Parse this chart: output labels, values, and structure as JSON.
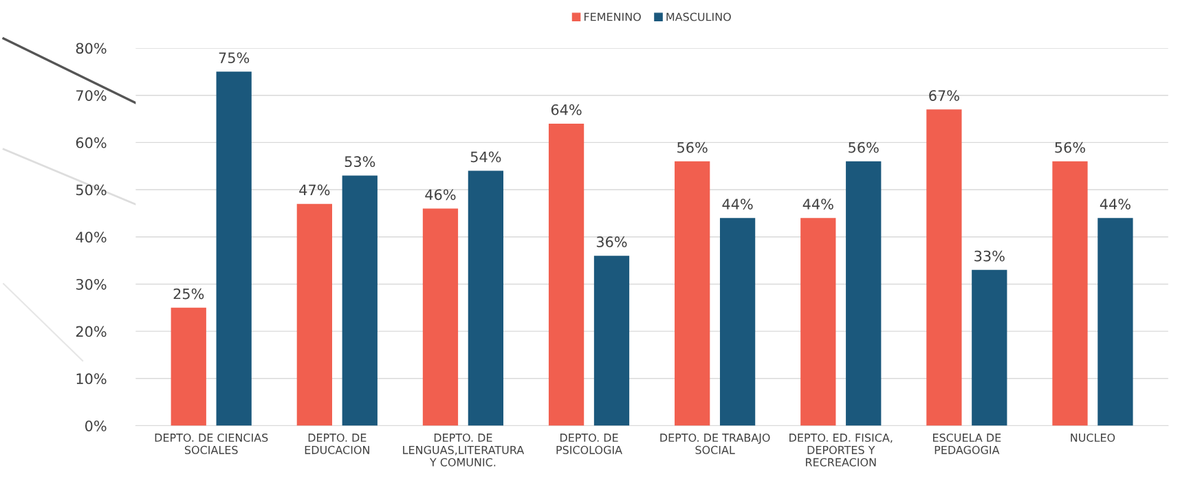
{
  "chart_data": {
    "type": "bar",
    "categories": [
      "DEPTO. DE CIENCIAS\nSOCIALES",
      "DEPTO. DE\nEDUCACION",
      "DEPTO. DE\nLENGUAS,LITERATURA\nY COMUNIC.",
      "DEPTO. DE\nPSICOLOGIA",
      "DEPTO. DE TRABAJO\nSOCIAL",
      "DEPTO. ED. FISICA,\nDEPORTES Y\nRECREACION",
      "ESCUELA DE\nPEDAGOGIA",
      "NUCLEO"
    ],
    "series": [
      {
        "name": "FEMENINO",
        "color": "#f15f4f",
        "values": [
          25,
          47,
          46,
          64,
          56,
          44,
          67,
          56
        ]
      },
      {
        "name": "MASCULINO",
        "color": "#1b587c",
        "values": [
          75,
          53,
          54,
          36,
          44,
          56,
          33,
          44
        ]
      }
    ],
    "ylim": [
      0,
      80
    ],
    "yticks": [
      {
        "value": 0,
        "label": "0%"
      },
      {
        "value": 10,
        "label": "10%"
      },
      {
        "value": 20,
        "label": "20%"
      },
      {
        "value": 30,
        "label": "30%"
      },
      {
        "value": 40,
        "label": "40%"
      },
      {
        "value": 50,
        "label": "50%"
      },
      {
        "value": 60,
        "label": "60%"
      },
      {
        "value": 70,
        "label": "70%"
      },
      {
        "value": 80,
        "label": "80%"
      }
    ],
    "value_labels": [
      [
        "25%",
        "47%",
        "46%",
        "64%",
        "56%",
        "44%",
        "67%",
        "56%"
      ],
      [
        "75%",
        "53%",
        "54%",
        "36%",
        "44%",
        "56%",
        "33%",
        "44%"
      ]
    ],
    "grid": "y",
    "legend": "top"
  }
}
